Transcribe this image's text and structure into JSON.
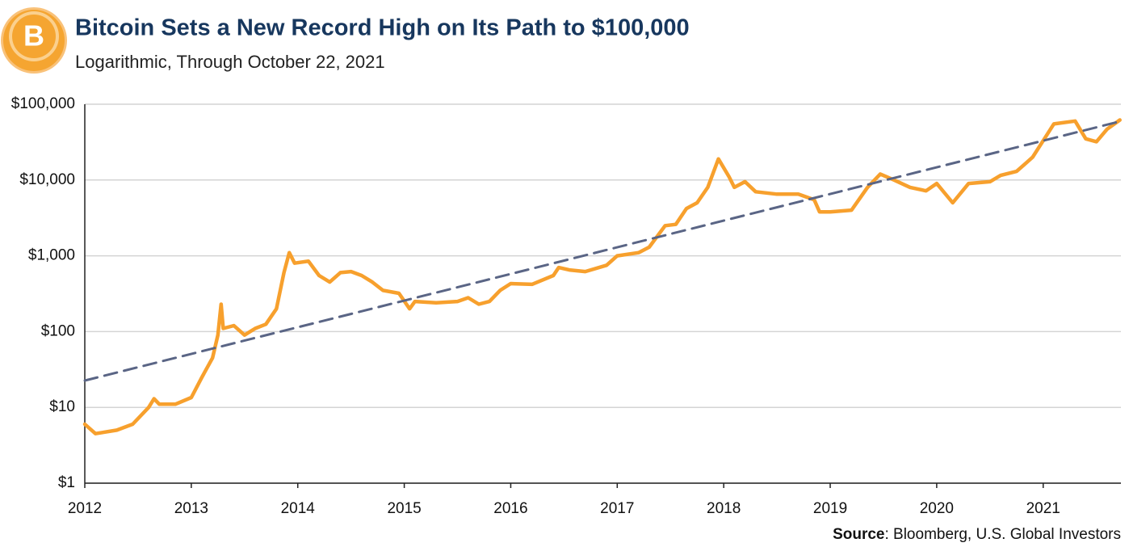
{
  "chart_data": {
    "type": "line",
    "title": "Bitcoin Sets a New Record High on Its Path to $100,000",
    "subtitle": "Logarithmic, Through October 22, 2021",
    "source": {
      "label": "Source",
      "text": ": Bloomberg, U.S. Global Investors"
    },
    "yscale": "log",
    "grid": true,
    "xlim": [
      2012,
      2021.73
    ],
    "xticks": [
      2012,
      2013,
      2014,
      2015,
      2016,
      2017,
      2018,
      2019,
      2020,
      2021
    ],
    "ylim": [
      1,
      100000
    ],
    "yticks": [
      {
        "value": 1,
        "label": "$1"
      },
      {
        "value": 10,
        "label": "$10"
      },
      {
        "value": 100,
        "label": "$100"
      },
      {
        "value": 1000,
        "label": "$1,000"
      },
      {
        "value": 10000,
        "label": "$10,000"
      },
      {
        "value": 100000,
        "label": "$100,000"
      }
    ],
    "series": [
      {
        "color": "#f7a02d",
        "dash": false,
        "x": [
          2012.0,
          2012.1,
          2012.3,
          2012.45,
          2012.6,
          2012.65,
          2012.7,
          2012.85,
          2013.0,
          2013.1,
          2013.2,
          2013.25,
          2013.28,
          2013.3,
          2013.4,
          2013.5,
          2013.6,
          2013.7,
          2013.8,
          2013.87,
          2013.92,
          2013.97,
          2014.1,
          2014.2,
          2014.3,
          2014.4,
          2014.5,
          2014.6,
          2014.7,
          2014.8,
          2014.95,
          2015.05,
          2015.1,
          2015.3,
          2015.5,
          2015.6,
          2015.7,
          2015.8,
          2015.9,
          2016.0,
          2016.2,
          2016.4,
          2016.45,
          2016.55,
          2016.7,
          2016.9,
          2017.0,
          2017.2,
          2017.3,
          2017.45,
          2017.55,
          2017.65,
          2017.75,
          2017.85,
          2017.95,
          2018.05,
          2018.1,
          2018.2,
          2018.3,
          2018.5,
          2018.7,
          2018.85,
          2018.9,
          2019.0,
          2019.2,
          2019.35,
          2019.47,
          2019.6,
          2019.75,
          2019.9,
          2020.0,
          2020.15,
          2020.3,
          2020.5,
          2020.6,
          2020.75,
          2020.9,
          2021.0,
          2021.1,
          2021.3,
          2021.4,
          2021.5,
          2021.6,
          2021.72
        ],
        "values": [
          6,
          4.5,
          5,
          6,
          10,
          13,
          11,
          11,
          13.5,
          25,
          45,
          90,
          230,
          110,
          120,
          90,
          110,
          125,
          200,
          600,
          1100,
          800,
          850,
          550,
          450,
          600,
          620,
          550,
          450,
          350,
          320,
          200,
          250,
          240,
          250,
          280,
          230,
          250,
          350,
          430,
          420,
          550,
          700,
          650,
          620,
          750,
          1000,
          1100,
          1300,
          2500,
          2600,
          4200,
          5000,
          8000,
          19000,
          11000,
          8000,
          9500,
          7000,
          6500,
          6500,
          5500,
          3800,
          3800,
          4000,
          8000,
          12000,
          10000,
          8000,
          7200,
          9000,
          5000,
          9000,
          9500,
          11500,
          13000,
          20000,
          33000,
          55000,
          60000,
          35000,
          32000,
          47000,
          62000
        ]
      },
      {
        "color": "#5a6585",
        "dash": true,
        "x": [
          2012.0,
          2021.73
        ],
        "values": [
          22.6,
          59700
        ]
      }
    ]
  }
}
